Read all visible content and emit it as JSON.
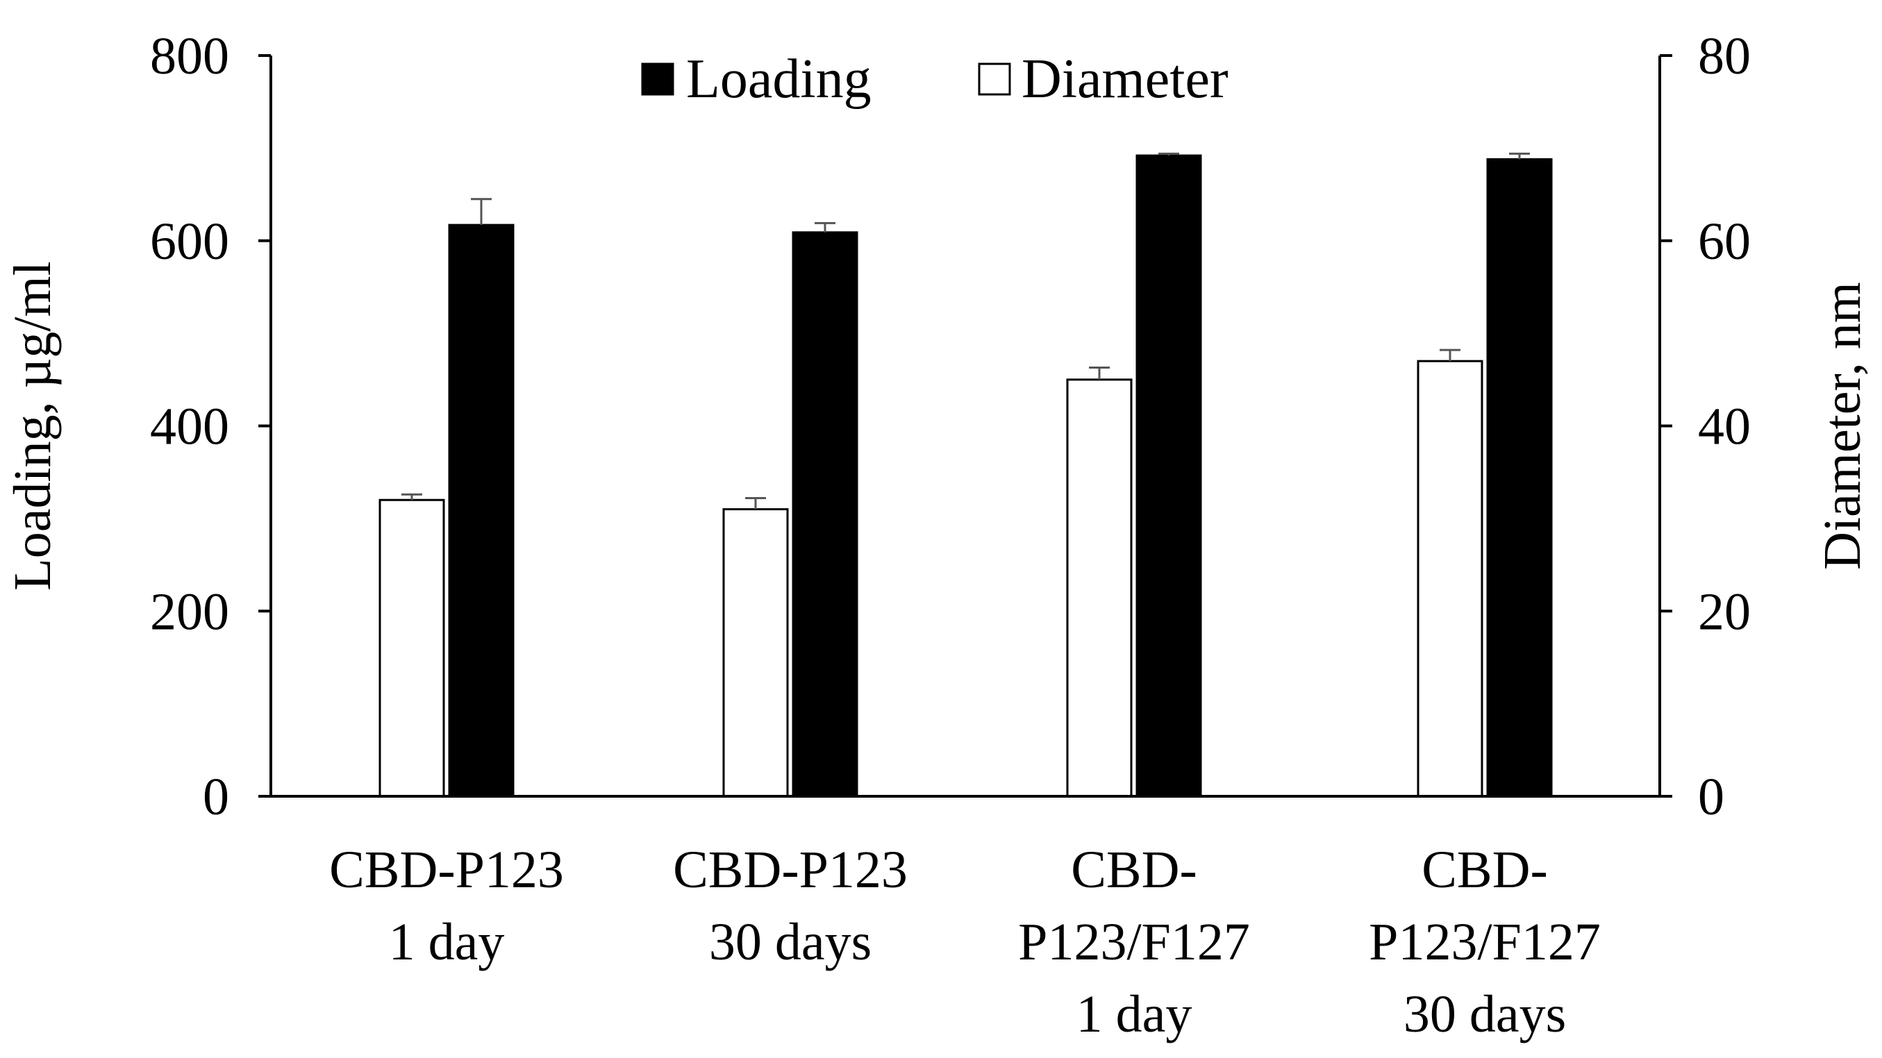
{
  "chart_data": {
    "type": "bar",
    "categories": [
      [
        "CBD-P123",
        "1 day"
      ],
      [
        "CBD-P123",
        "30 days"
      ],
      [
        "CBD-",
        "P123/F127",
        "1 day"
      ],
      [
        "CBD-",
        "P123/F127",
        "30 days"
      ]
    ],
    "series": [
      {
        "name": "Diameter",
        "axis": "right",
        "fill": "#ffffff",
        "values": [
          32,
          31,
          45,
          47
        ],
        "errors": [
          0.6,
          1.2,
          1.3,
          1.2
        ]
      },
      {
        "name": "Loading",
        "axis": "left",
        "fill": "#000000",
        "values": [
          617,
          609,
          692,
          688
        ],
        "errors": [
          28,
          10,
          2,
          6
        ]
      }
    ],
    "left_axis": {
      "label": "Loading, µg/ml",
      "min": 0,
      "max": 800,
      "ticks": [
        "0",
        "200",
        "400",
        "600",
        "800"
      ]
    },
    "right_axis": {
      "label": "Diameter, nm",
      "min": 0,
      "max": 80,
      "ticks": [
        "0",
        "20",
        "40",
        "60",
        "80"
      ]
    },
    "legend": {
      "position": "top-center",
      "order": [
        "Loading",
        "Diameter"
      ]
    },
    "grid": false
  }
}
